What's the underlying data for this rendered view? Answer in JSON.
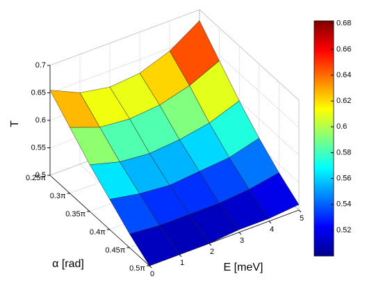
{
  "chart_data": {
    "type": "surface",
    "xlabel": "E [meV]",
    "ylabel": "α [rad]",
    "zlabel": "T",
    "x": [
      0,
      1,
      2,
      3,
      4,
      5
    ],
    "y": [
      0.25,
      0.3,
      0.35,
      0.4,
      0.45,
      0.5
    ],
    "z": [
      [
        0.655,
        0.63,
        0.62,
        0.625,
        0.645,
        0.68
      ],
      [
        0.62,
        0.6,
        0.595,
        0.6,
        0.615,
        0.64
      ],
      [
        0.585,
        0.57,
        0.565,
        0.57,
        0.58,
        0.6
      ],
      [
        0.555,
        0.545,
        0.54,
        0.545,
        0.55,
        0.565
      ],
      [
        0.525,
        0.52,
        0.52,
        0.52,
        0.525,
        0.535
      ],
      [
        0.5,
        0.5,
        0.5,
        0.505,
        0.505,
        0.51
      ]
    ],
    "xlim": [
      0,
      5
    ],
    "xticks": [
      0,
      1,
      2,
      3,
      4,
      5
    ],
    "ylim": [
      0.25,
      0.5
    ],
    "yticks": [
      {
        "value": 0.25,
        "label": "0.25π"
      },
      {
        "value": 0.3,
        "label": "0.3π"
      },
      {
        "value": 0.35,
        "label": "0.35π"
      },
      {
        "value": 0.4,
        "label": "0.4π"
      },
      {
        "value": 0.45,
        "label": "0.45π"
      },
      {
        "value": 0.5,
        "label": "0.5π"
      }
    ],
    "zlim": [
      0.5,
      0.7
    ],
    "zticks": [
      0.5,
      0.55,
      0.6,
      0.65,
      0.7
    ],
    "colormap": "jet",
    "clim": [
      0.5,
      0.682
    ],
    "cticks": [
      0.52,
      0.54,
      0.56,
      0.58,
      0.6,
      0.62,
      0.64,
      0.66,
      0.68
    ],
    "grid": true
  }
}
